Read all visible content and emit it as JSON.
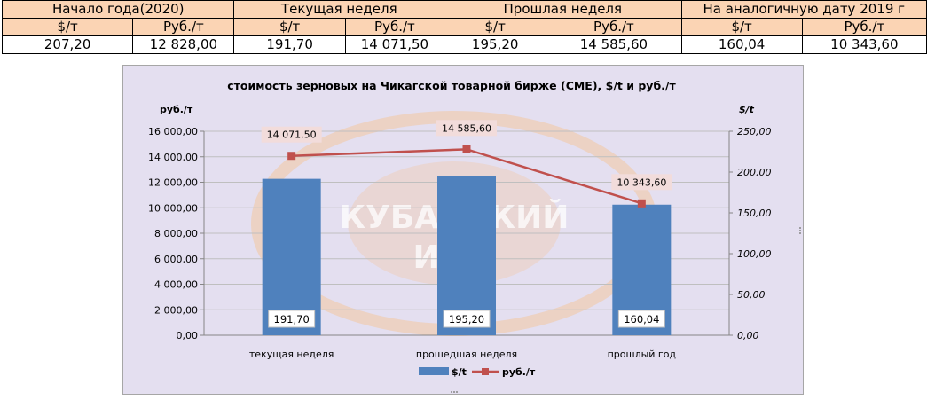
{
  "table": {
    "groups": [
      "Начало года(2020)",
      "Текущая неделя",
      "Прошлая неделя",
      "На аналогичную дату 2019 г"
    ],
    "units": [
      "$/т",
      "Руб./т",
      "$/т",
      "Руб./т",
      "$/т",
      "Руб./т",
      "$/т",
      "Руб./т"
    ],
    "values": [
      "207,20",
      "12 828,00",
      "191,70",
      "14 071,50",
      "195,20",
      "14 585,60",
      "160,04",
      "10 343,60"
    ]
  },
  "watermark": {
    "line1": "КУБАНСКИЙ",
    "line2": "ИКЦ"
  },
  "colors": {
    "bar": "#4f81bd",
    "line": "#c0504d",
    "header_bg": "#fbd4b4",
    "chart_bg": "#e4dff0",
    "watermark": "#f3c7a1"
  },
  "chart_data": {
    "type": "bar",
    "title": "стоимость зерновых на Чикагской товарной бирже (CME), $/t и руб./т",
    "categories": [
      "текущая неделя",
      "прошедшая неделя",
      "прошлый год"
    ],
    "y_left_label": "руб./т",
    "y_right_label": "$/t",
    "y_left_range": [
      0,
      16000
    ],
    "y_right_range": [
      0,
      250
    ],
    "y_left_ticks": [
      "0,00",
      "2 000,00",
      "4 000,00",
      "6 000,00",
      "8 000,00",
      "10 000,00",
      "12 000,00",
      "14 000,00",
      "16 000,00"
    ],
    "y_right_ticks": [
      "0,00",
      "50,00",
      "100,00",
      "150,00",
      "200,00",
      "250,00"
    ],
    "grid": true,
    "legend_position": "bottom",
    "series": [
      {
        "name": "$/t",
        "type": "bar",
        "axis": "right",
        "values": [
          191.7,
          195.2,
          160.04
        ],
        "labels": [
          "191,70",
          "195,20",
          "160,04"
        ]
      },
      {
        "name": "руб./т",
        "type": "line",
        "axis": "left",
        "values": [
          14071.5,
          14585.6,
          10343.6
        ],
        "labels": [
          "14 071,50",
          "14 585,60",
          "10 343,60"
        ]
      }
    ]
  }
}
